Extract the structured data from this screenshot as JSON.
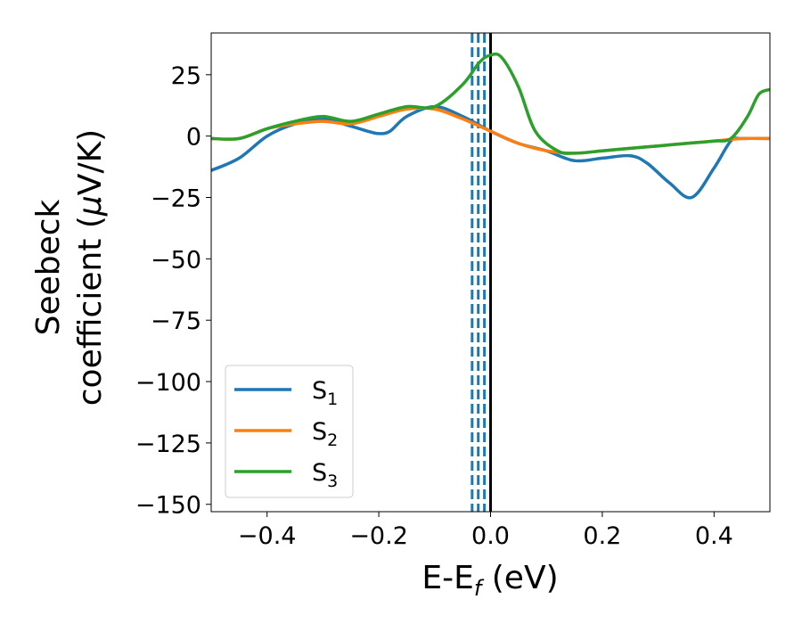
{
  "chart_data": {
    "type": "line",
    "xlabel": "E-E",
    "xlabel_sub": "f",
    "xlabel_unit": " (eV)",
    "ylabel_line1": "Seebeck",
    "ylabel_line2": "coefficient  (",
    "ylabel_mu": "μ",
    "ylabel_unit": "V/K)",
    "xlim": [
      -0.5,
      0.5
    ],
    "ylim": [
      -153,
      42
    ],
    "x_ticks": [
      -0.4,
      -0.2,
      0.0,
      0.2,
      0.4
    ],
    "x_tick_labels": [
      "−0.4",
      "−0.2",
      "0.0",
      "0.2",
      "0.4"
    ],
    "y_ticks": [
      25,
      0,
      -25,
      -50,
      -75,
      -100,
      -125,
      -150
    ],
    "y_tick_labels": [
      "25",
      "0",
      "−25",
      "−50",
      "−75",
      "−100",
      "−125",
      "−150"
    ],
    "grid": false,
    "legend_position": "lower-left",
    "vertical_lines": [
      {
        "x": -0.033,
        "style": "dashed",
        "color": "#1f77b4"
      },
      {
        "x": -0.022,
        "style": "dashed",
        "color": "#1f77b4"
      },
      {
        "x": -0.011,
        "style": "dashed",
        "color": "#1f77b4"
      },
      {
        "x": 0.0,
        "style": "solid",
        "color": "#000000"
      }
    ],
    "series": [
      {
        "name": "S",
        "sub": "1",
        "color": "#1f77b4",
        "x": [
          -0.5,
          -0.45,
          -0.4,
          -0.35,
          -0.3,
          -0.25,
          -0.22,
          -0.2,
          -0.18,
          -0.15,
          -0.1,
          -0.05,
          0.0,
          0.05,
          0.1,
          0.15,
          0.2,
          0.25,
          0.28,
          0.32,
          0.36,
          0.4,
          0.43,
          0.45,
          0.5
        ],
        "y": [
          -14,
          -9,
          0,
          5,
          7,
          4,
          2,
          1,
          2,
          8,
          12,
          8,
          2,
          -3,
          -6,
          -10,
          -9,
          -8,
          -11,
          -19,
          -25,
          -13,
          -2,
          -1,
          -1
        ]
      },
      {
        "name": "S",
        "sub": "2",
        "color": "#ff7f0e",
        "x": [
          -0.5,
          -0.45,
          -0.4,
          -0.35,
          -0.3,
          -0.25,
          -0.2,
          -0.15,
          -0.1,
          -0.05,
          0.0,
          0.05,
          0.1,
          0.15,
          0.2,
          0.25,
          0.3,
          0.35,
          0.4,
          0.45,
          0.5
        ],
        "y": [
          -1,
          -1,
          3,
          5,
          6,
          5,
          8,
          11,
          11,
          7,
          2,
          -3,
          -6,
          -7,
          -6,
          -5,
          -4,
          -3,
          -2,
          -1,
          -1
        ]
      },
      {
        "name": "S",
        "sub": "3",
        "color": "#2ca02c",
        "x": [
          -0.5,
          -0.45,
          -0.4,
          -0.35,
          -0.3,
          -0.25,
          -0.2,
          -0.15,
          -0.1,
          -0.05,
          -0.02,
          0.0,
          0.02,
          0.05,
          0.08,
          0.12,
          0.15,
          0.2,
          0.25,
          0.3,
          0.35,
          0.4,
          0.43,
          0.46,
          0.48,
          0.5
        ],
        "y": [
          -1,
          -1,
          3,
          6,
          8,
          6,
          9,
          12,
          12,
          21,
          30,
          33,
          32,
          20,
          2,
          -6,
          -7,
          -6,
          -5,
          -4,
          -3,
          -2,
          -1,
          8,
          17,
          19
        ]
      }
    ]
  }
}
